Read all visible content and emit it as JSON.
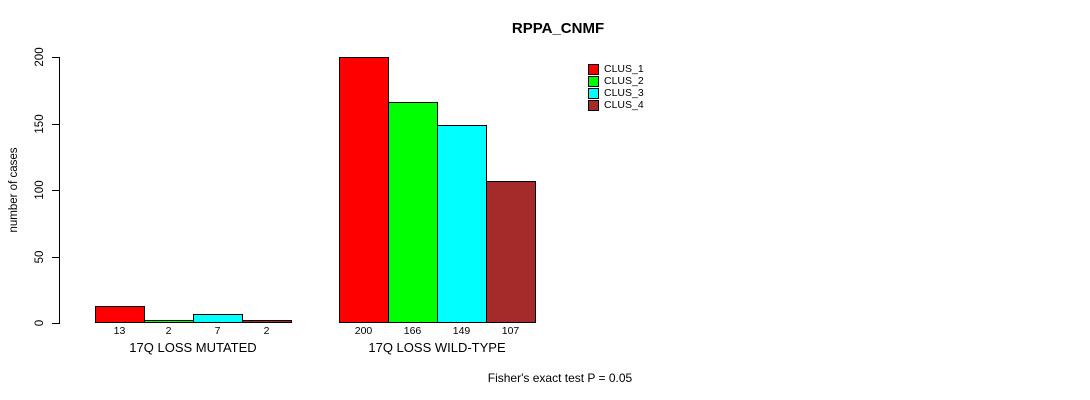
{
  "chart_data": {
    "type": "bar",
    "title": "RPPA_CNMF",
    "xlabel": "",
    "ylabel": "number of cases",
    "categories": [
      "17Q LOSS MUTATED",
      "17Q LOSS WILD-TYPE"
    ],
    "series": [
      {
        "name": "CLUS_1",
        "color": "#ff0000",
        "values": [
          13,
          200
        ]
      },
      {
        "name": "CLUS_2",
        "color": "#00ff00",
        "values": [
          2,
          166
        ]
      },
      {
        "name": "CLUS_3",
        "color": "#00ffff",
        "values": [
          7,
          149
        ]
      },
      {
        "name": "CLUS_4",
        "color": "#a52a2a",
        "values": [
          2,
          107
        ]
      }
    ],
    "bar_value_labels": [
      [
        "13",
        "2",
        "7",
        "2"
      ],
      [
        "200",
        "166",
        "149",
        "107"
      ]
    ],
    "yticks": [
      "0",
      "50",
      "100",
      "150",
      "200"
    ],
    "ylim": [
      0,
      200
    ],
    "grid": false,
    "legend_position": "top-right",
    "footnote": "Fisher's exact test P = 0.05"
  }
}
